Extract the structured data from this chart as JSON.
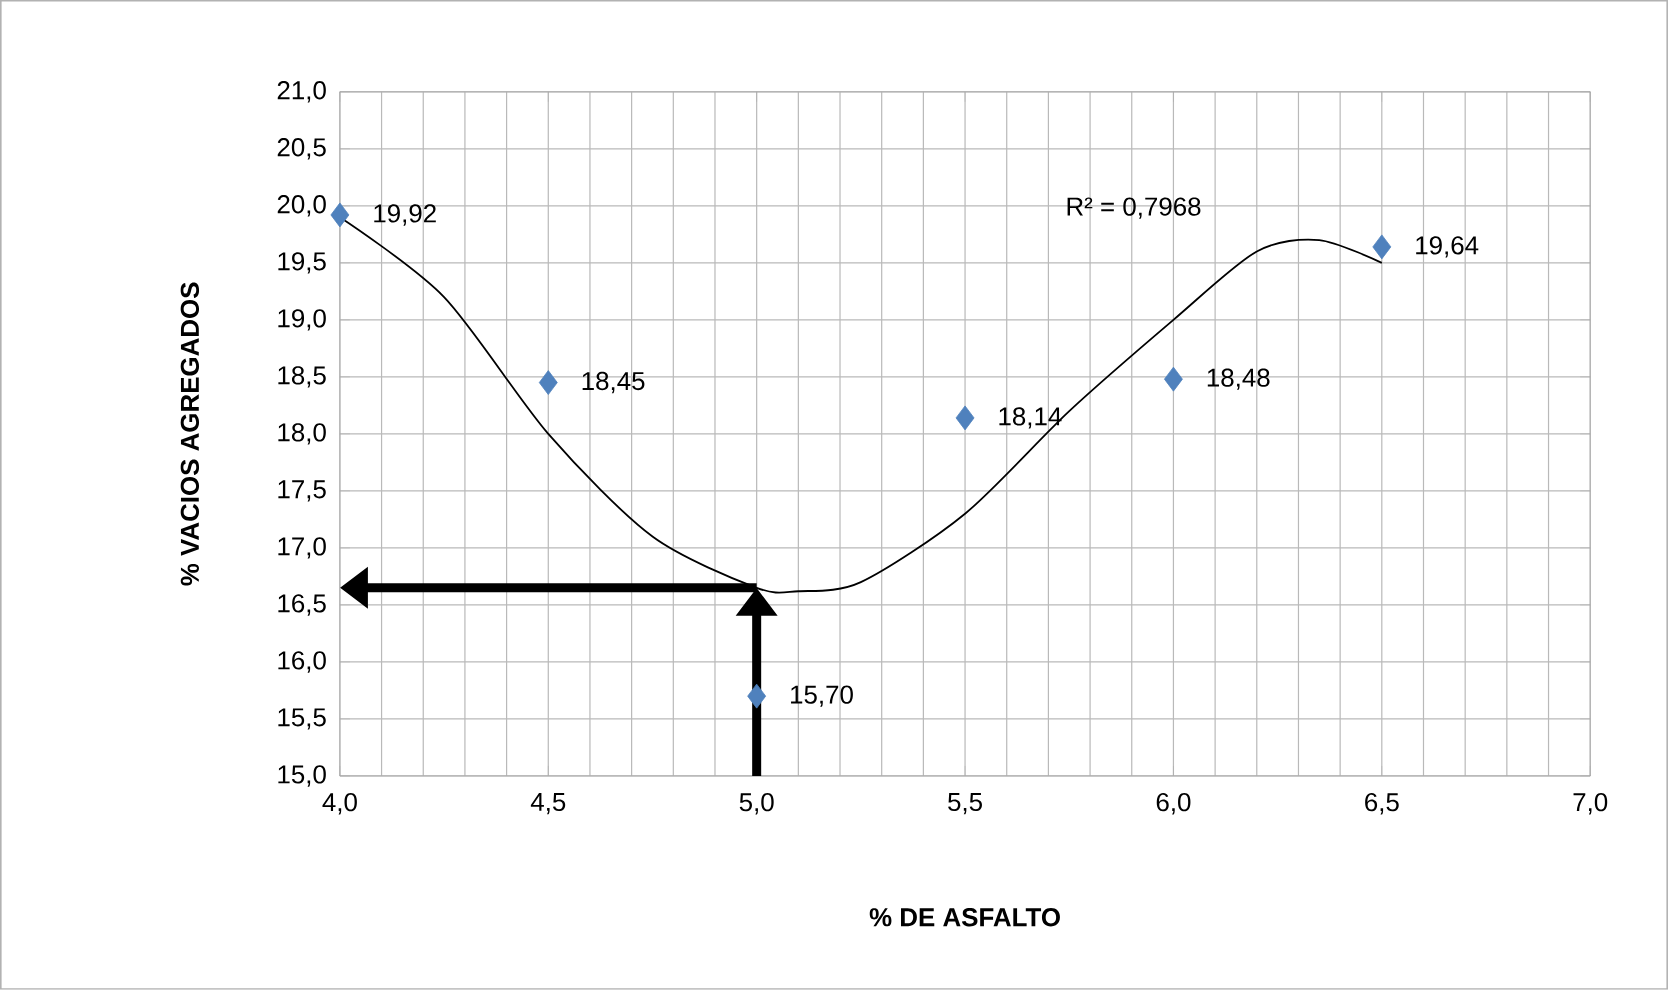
{
  "chart_data": {
    "type": "scatter",
    "xlabel": "% DE ASFALTO",
    "ylabel": "% VACIOS AGREGADOS",
    "x": [
      4.0,
      4.5,
      5.0,
      5.5,
      6.0,
      6.5
    ],
    "series": [
      {
        "color": "#4f81bd",
        "marker": "diamond",
        "values": [
          19.92,
          18.45,
          15.7,
          18.14,
          18.48,
          19.64
        ],
        "value_labels": [
          "19,92",
          "18,45",
          "15,70",
          "18,14",
          "18,48",
          "19,64"
        ]
      },
      {
        "type": "line",
        "color": "#000000",
        "x": [
          4.0,
          4.25,
          4.5,
          4.75,
          5.0,
          5.1,
          5.25,
          5.5,
          5.75,
          6.0,
          6.2,
          6.35,
          6.5
        ],
        "values": [
          19.9,
          19.2,
          18.0,
          17.1,
          16.65,
          16.62,
          16.7,
          17.3,
          18.2,
          19.0,
          19.6,
          19.7,
          19.5
        ]
      }
    ],
    "annotations": [
      "R² = 0,7968"
    ],
    "xlim": [
      4.0,
      7.0
    ],
    "ylim": [
      15.0,
      21.0
    ],
    "xticks": [
      {
        "value": 4.0,
        "label": "4,0"
      },
      {
        "value": 4.5,
        "label": "4,5"
      },
      {
        "value": 5.0,
        "label": "5,0"
      },
      {
        "value": 5.5,
        "label": "5,5"
      },
      {
        "value": 6.0,
        "label": "6,0"
      },
      {
        "value": 6.5,
        "label": "6,5"
      },
      {
        "value": 7.0,
        "label": "7,0"
      }
    ],
    "yticks": [
      {
        "value": 15.0,
        "label": "15,0"
      },
      {
        "value": 15.5,
        "label": "15,5"
      },
      {
        "value": 16.0,
        "label": "16,0"
      },
      {
        "value": 16.5,
        "label": "16,5"
      },
      {
        "value": 17.0,
        "label": "17,0"
      },
      {
        "value": 17.5,
        "label": "17,5"
      },
      {
        "value": 18.0,
        "label": "18,0"
      },
      {
        "value": 18.5,
        "label": "18,5"
      },
      {
        "value": 19.0,
        "label": "19,0"
      },
      {
        "value": 19.5,
        "label": "19,5"
      },
      {
        "value": 20.0,
        "label": "20,0"
      },
      {
        "value": 20.5,
        "label": "20,5"
      },
      {
        "value": 21.0,
        "label": "21,0"
      }
    ],
    "grid": true
  }
}
